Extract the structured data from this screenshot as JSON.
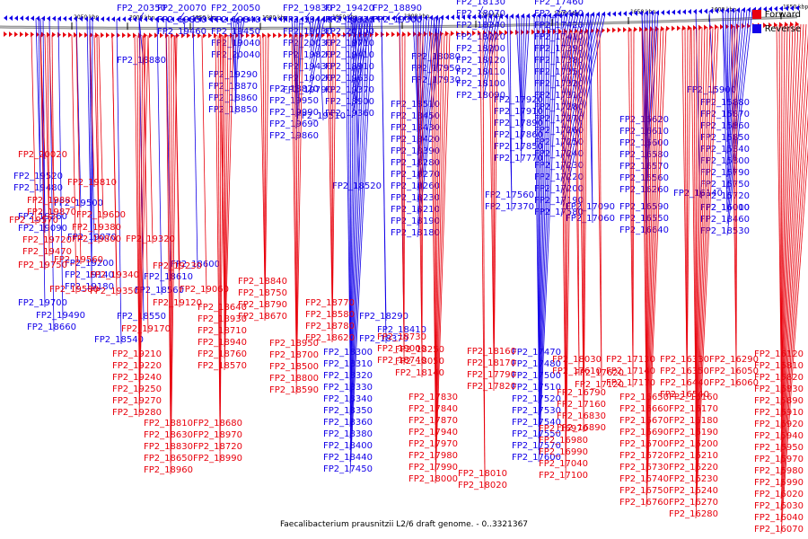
{
  "legend": {
    "forward_label": "Forward",
    "reverse_label": "Reverse",
    "forward_color": "#e8000c",
    "reverse_color": "#1200e8"
  },
  "caption": "Faecalibacterium prausnitzii L2/6 draft genome. - 0..3321367",
  "scale_labels": [
    "2050 kbp",
    "2000 kbp",
    "1950 kbp",
    "1900 kbp",
    "1850 kbp",
    "1800 kbp",
    "1750 kbp",
    "1700 kbp",
    "1650 kbp",
    "1600 kbp",
    "1550 kbp"
  ],
  "reverse_genes": [
    "FP2_20350",
    "FP2_20070",
    "FP2_19850",
    "FP2_19460",
    "FP2_20050",
    "FP2_19840",
    "FP2_19450",
    "FP2_19040",
    "FP2_20040",
    "FP2_19830",
    "FP2_19440",
    "FP2_19030",
    "FP2_20030",
    "FP2_19820",
    "FP2_19430",
    "FP2_19020",
    "FP2_19790",
    "FP2_19420",
    "FP2_18920",
    "FP2_20100",
    "FP2_19710",
    "FP2_19410",
    "FP2_18910",
    "FP2_19630",
    "FP2_19370",
    "FP2_18900",
    "FP2_19360",
    "FP2_18890",
    "FP2_19300",
    "FP2_18880",
    "FP2_19290",
    "FP2_18870",
    "FP2_18860",
    "FP2_18850",
    "FP2_18820",
    "FP2_19950",
    "FP2_19990",
    "FP2_19690",
    "FP2_19860",
    "FP2_19510",
    "FP2_19520",
    "FP2_19480",
    "FP2_19500",
    "FP2_19260",
    "FP2_19090",
    "FP2_19070",
    "FP2_19200",
    "FP2_19140",
    "FP2_19180",
    "FP2_19700",
    "FP2_19490",
    "FP2_18660",
    "FP2_18610",
    "FP2_18600",
    "FP2_18560",
    "FP2_18550",
    "FP2_18540",
    "FP2_18520",
    "FP2_18510",
    "FP2_18450",
    "FP2_18430",
    "FP2_18420",
    "FP2_18390",
    "FP2_18280",
    "FP2_18270",
    "FP2_18260",
    "FP2_18230",
    "FP2_18210",
    "FP2_18190",
    "FP2_18180",
    "FP2_18130",
    "FP2_18070",
    "FP2_18240",
    "FP2_18220",
    "FP2_18200",
    "FP2_18120",
    "FP2_18110",
    "FP2_18100",
    "FP2_18090",
    "FP2_18080",
    "FP2_17950",
    "FP2_17930",
    "FP2_17920",
    "FP2_17910",
    "FP2_17890",
    "FP2_17860",
    "FP2_17850",
    "FP2_17770",
    "FP2_17460",
    "FP2_17440",
    "FP2_17420",
    "FP2_17410",
    "FP2_17390",
    "FP2_17380",
    "FP2_17350",
    "FP2_17320",
    "FP2_17310",
    "FP2_17280",
    "FP2_17270",
    "FP2_17260",
    "FP2_17250",
    "FP2_17240",
    "FP2_17230",
    "FP2_17220",
    "FP2_17200",
    "FP2_17190",
    "FP2_17580",
    "FP2_17560",
    "FP2_17370",
    "FP2_17090",
    "FP2_17060",
    "FP2_16620",
    "FP2_16610",
    "FP2_16600",
    "FP2_16580",
    "FP2_16570",
    "FP2_16560",
    "FP2_16260",
    "FP2_16590",
    "FP2_16550",
    "FP2_16640",
    "FP2_16140",
    "FP2_16010",
    "FP2_15900",
    "FP2_15880",
    "FP2_15870",
    "FP2_15860",
    "FP2_15850",
    "FP2_15840",
    "FP2_15800",
    "FP2_15790",
    "FP2_15750",
    "FP2_15720",
    "FP2_16000",
    "FP2_18460",
    "FP2_18530",
    "FP2_18290",
    "FP2_18370",
    "FP2_18410",
    "FP2_18300",
    "FP2_18310",
    "FP2_18320",
    "FP2_18330",
    "FP2_18340",
    "FP2_18350",
    "FP2_18360",
    "FP2_18380",
    "FP2_18400",
    "FP2_18440",
    "FP2_17450",
    "FP2_17470",
    "FP2_17480",
    "FP2_17500",
    "FP2_17510",
    "FP2_17520",
    "FP2_17530",
    "FP2_17540",
    "FP2_17550",
    "FP2_17570",
    "FP2_17600"
  ],
  "forward_genes": [
    "FP2_20020",
    "FP2_19810",
    "FP2_19880",
    "FP2_19870",
    "FP2_19570",
    "FP2_19600",
    "FP2_19380",
    "FP2_19800",
    "FP2_19720",
    "FP2_19470",
    "FP2_19320",
    "FP2_19750",
    "FP2_19560",
    "FP2_19340",
    "FP2_19230",
    "FP2_19580",
    "FP2_19350",
    "FP2_19060",
    "FP2_19120",
    "FP2_19170",
    "FP2_19210",
    "FP2_19220",
    "FP2_19240",
    "FP2_19250",
    "FP2_19270",
    "FP2_19280",
    "FP2_18840",
    "FP2_18750",
    "FP2_18790",
    "FP2_18670",
    "FP2_18640",
    "FP2_18930",
    "FP2_18710",
    "FP2_18940",
    "FP2_18760",
    "FP2_18570",
    "FP2_18770",
    "FP2_18580",
    "FP2_18780",
    "FP2_18620",
    "FP2_18950",
    "FP2_18700",
    "FP2_18500",
    "FP2_18800",
    "FP2_18590",
    "FP2_18810",
    "FP2_18630",
    "FP2_18830",
    "FP2_18650",
    "FP2_18960",
    "FP2_18680",
    "FP2_18970",
    "FP2_18720",
    "FP2_18990",
    "FP2_18730",
    "FP2_19000",
    "FP2_18740",
    "FP2_18250",
    "FP2_18050",
    "FP2_18140",
    "FP2_18160",
    "FP2_18170",
    "FP2_17790",
    "FP2_17820",
    "FP2_17830",
    "FP2_17840",
    "FP2_17870",
    "FP2_17940",
    "FP2_17970",
    "FP2_17980",
    "FP2_17990",
    "FP2_18000",
    "FP2_18010",
    "FP2_18020",
    "FP2_18030",
    "FP2_17610",
    "FP2_17620",
    "FP2_17120",
    "FP2_16790",
    "FP2_17160",
    "FP2_16830",
    "FP2_16890",
    "FP2_16970",
    "FP2_16980",
    "FP2_16990",
    "FP2_17040",
    "FP2_17100",
    "FP2_17130",
    "FP2_17140",
    "FP2_17170",
    "FP2_16650",
    "FP2_16660",
    "FP2_16670",
    "FP2_16690",
    "FP2_16700",
    "FP2_16720",
    "FP2_16730",
    "FP2_16740",
    "FP2_16750",
    "FP2_16760",
    "FP2_16330",
    "FP2_16350",
    "FP2_16440",
    "FP2_16540",
    "FP2_16160",
    "FP2_16170",
    "FP2_16180",
    "FP2_16190",
    "FP2_16200",
    "FP2_16210",
    "FP2_16220",
    "FP2_16230",
    "FP2_16240",
    "FP2_16270",
    "FP2_16280",
    "FP2_16290",
    "FP2_16050",
    "FP2_16060",
    "FP2_16120",
    "FP2_15810",
    "FP2_15820",
    "FP2_15830",
    "FP2_15890",
    "FP2_15910",
    "FP2_15920",
    "FP2_15940",
    "FP2_15950",
    "FP2_15970",
    "FP2_15980",
    "FP2_15990",
    "FP2_16020",
    "FP2_16030",
    "FP2_16040",
    "FP2_16070"
  ]
}
